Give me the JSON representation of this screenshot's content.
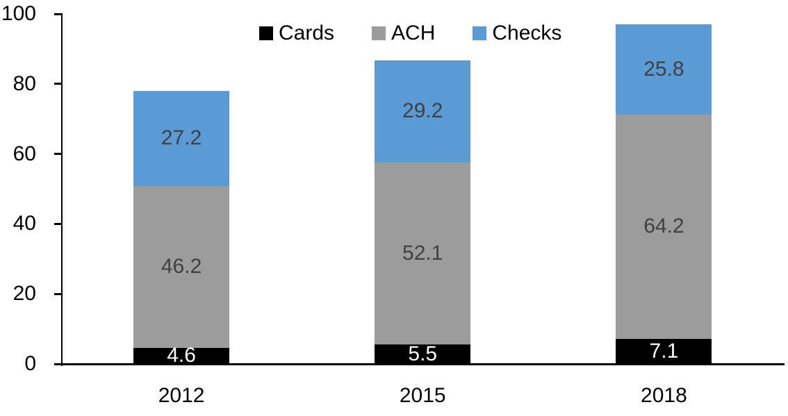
{
  "chart_data": {
    "type": "bar",
    "stacked": true,
    "title": "",
    "xlabel": "",
    "ylabel": "",
    "categories": [
      "2012",
      "2015",
      "2018"
    ],
    "series": [
      {
        "name": "Cards",
        "color": "#000000",
        "label_color": "#FFFFFF",
        "values": [
          4.6,
          5.5,
          7.1
        ]
      },
      {
        "name": "ACH",
        "color": "#9C9C9C",
        "label_color": "#404040",
        "values": [
          46.2,
          52.1,
          64.2
        ]
      },
      {
        "name": "Checks",
        "color": "#5B9BD5",
        "label_color": "#404040",
        "values": [
          27.2,
          29.2,
          25.8
        ]
      }
    ],
    "ylim": [
      0,
      100
    ],
    "yticks": [
      0,
      20,
      40,
      60,
      80,
      100
    ],
    "legend_position": "top",
    "grid": false,
    "axis_color": "#000000"
  }
}
